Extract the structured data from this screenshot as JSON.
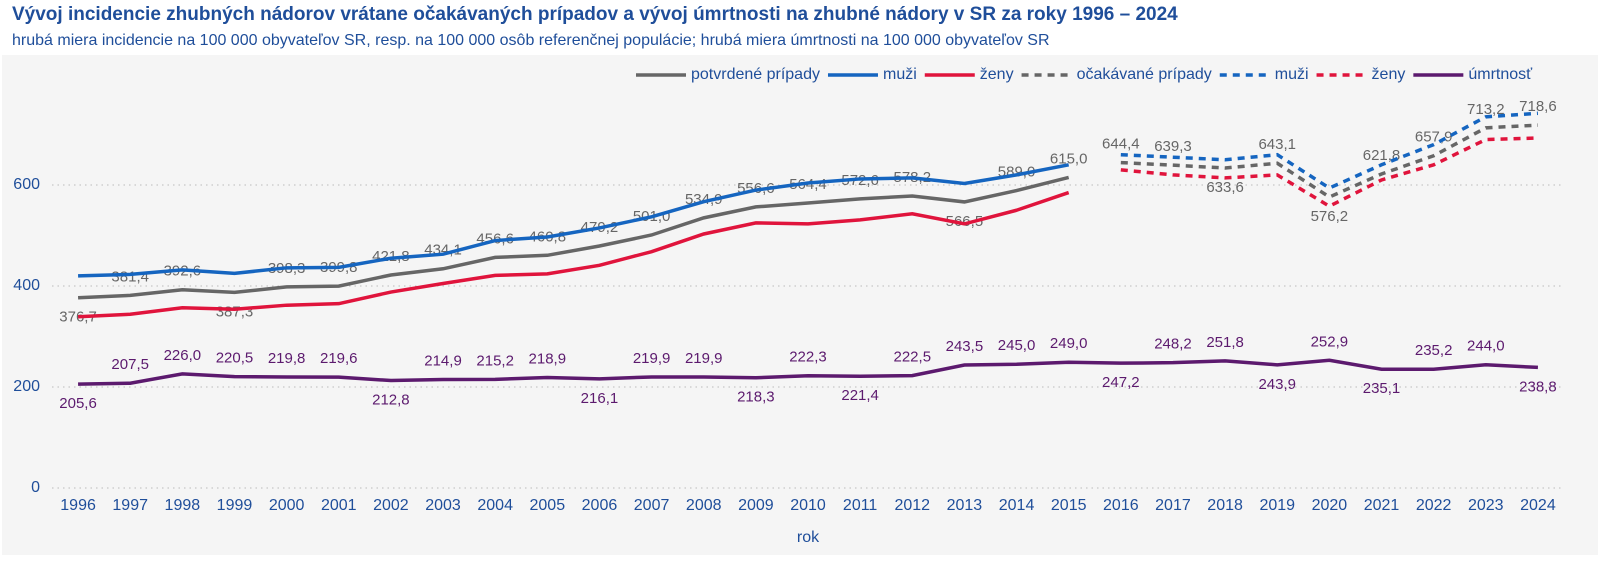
{
  "chart_data": {
    "type": "line",
    "title": "Vývoj incidencie zhubných nádorov vrátane očakávaných prípadov a vývoj úmrtnosti na zhubné nádory v SR za roky 1996 – 2024",
    "subtitle": "hrubá miera incidencie na 100 000 obyvateľov SR, resp. na 100 000 osôb referenčnej populácie; hrubá miera úmrtnosti na 100 000 obyvateľov SR",
    "x_label": "rok",
    "categories": [
      "1996",
      "1997",
      "1998",
      "1999",
      "2000",
      "2001",
      "2002",
      "2003",
      "2004",
      "2005",
      "2006",
      "2007",
      "2008",
      "2009",
      "2010",
      "2011",
      "2012",
      "2013",
      "2014",
      "2015",
      "2016",
      "2017",
      "2018",
      "2019",
      "2020",
      "2021",
      "2022",
      "2023",
      "2024"
    ],
    "ylim": [
      0,
      850
    ],
    "yticks": [
      0,
      200,
      400,
      600
    ],
    "grid": true,
    "legend": "top-right",
    "series": [
      {
        "name": "potvrdené prípady",
        "color": "#666666",
        "dashed": false,
        "values": [
          376.7,
          381.4,
          392.6,
          387.3,
          398.3,
          399.8,
          421.8,
          434.1,
          456.6,
          460.8,
          479.2,
          501.0,
          534.9,
          556.6,
          564.4,
          572.6,
          578.2,
          566.5,
          589.0,
          615.0,
          null,
          null,
          null,
          null,
          null,
          null,
          null,
          null,
          null
        ],
        "value_labels": [
          "376,7",
          "381,4",
          "392,6",
          "387,3",
          "398,3",
          "399,8",
          "421,8",
          "434,1",
          "456,6",
          "460,8",
          "479,2",
          "501,0",
          "534,9",
          "556,6",
          "564,4",
          "572,6",
          "578,2",
          "566,5",
          "589,0",
          "615,0",
          null,
          null,
          null,
          null,
          null,
          null,
          null,
          null,
          null
        ]
      },
      {
        "name": "muži",
        "color": "#1565c0",
        "dashed": false,
        "values": [
          420,
          423,
          432,
          425,
          436,
          437,
          455,
          463,
          490,
          497,
          515,
          537,
          567,
          590,
          604,
          612,
          614,
          603,
          620,
          640,
          null,
          null,
          null,
          null,
          null,
          null,
          null,
          null,
          null
        ]
      },
      {
        "name": "ženy",
        "color": "#e0143c",
        "dashed": false,
        "values": [
          339,
          344,
          357,
          354,
          362,
          365,
          388,
          405,
          421,
          424,
          441,
          468,
          503,
          525,
          523,
          531,
          543,
          523,
          550,
          585,
          null,
          null,
          null,
          null,
          null,
          null,
          null,
          null,
          null
        ]
      },
      {
        "name": "očakávané prípady",
        "color": "#666666",
        "dashed": true,
        "values": [
          null,
          null,
          null,
          null,
          null,
          null,
          null,
          null,
          null,
          null,
          null,
          null,
          null,
          null,
          null,
          null,
          null,
          null,
          null,
          null,
          644.4,
          639.3,
          633.6,
          643.1,
          576.2,
          621.8,
          657.9,
          713.2,
          718.6
        ],
        "value_labels": [
          null,
          null,
          null,
          null,
          null,
          null,
          null,
          null,
          null,
          null,
          null,
          null,
          null,
          null,
          null,
          null,
          null,
          null,
          null,
          null,
          "644,4",
          "639,3",
          "633,6",
          "643,1",
          "576,2",
          "621,8",
          "657,9",
          "713,2",
          "718,6"
        ]
      },
      {
        "name": "muži",
        "color": "#1565c0",
        "dashed": true,
        "values": [
          null,
          null,
          null,
          null,
          null,
          null,
          null,
          null,
          null,
          null,
          null,
          null,
          null,
          null,
          null,
          null,
          null,
          null,
          null,
          null,
          660,
          655,
          650,
          660,
          594,
          640,
          680,
          735,
          742
        ]
      },
      {
        "name": "ženy",
        "color": "#e0143c",
        "dashed": true,
        "values": [
          null,
          null,
          null,
          null,
          null,
          null,
          null,
          null,
          null,
          null,
          null,
          null,
          null,
          null,
          null,
          null,
          null,
          null,
          null,
          null,
          630,
          620,
          614,
          620,
          558,
          610,
          640,
          690,
          693
        ]
      },
      {
        "name": "úmrtnosť",
        "color": "#5c1a6e",
        "dashed": false,
        "values": [
          205.6,
          207.5,
          226.0,
          220.5,
          219.8,
          219.6,
          212.8,
          214.9,
          215.2,
          218.9,
          216.1,
          219.9,
          219.9,
          218.3,
          222.3,
          221.4,
          222.5,
          243.5,
          245.0,
          249.0,
          247.2,
          248.2,
          251.8,
          243.9,
          252.9,
          235.1,
          235.2,
          244.0,
          238.8
        ],
        "value_labels": [
          "205,6",
          "207,5",
          "226,0",
          "220,5",
          "219,8",
          "219,6",
          "212,8",
          "214,9",
          "215,2",
          "218,9",
          "216,1",
          "219,9",
          "219,9",
          "218,3",
          "222,3",
          "221,4",
          "222,5",
          "243,5",
          "245,0",
          "249,0",
          "247,2",
          "248,2",
          "251,8",
          "243,9",
          "252,9",
          "235,1",
          "235,2",
          "244,0",
          "238,8"
        ]
      }
    ]
  }
}
